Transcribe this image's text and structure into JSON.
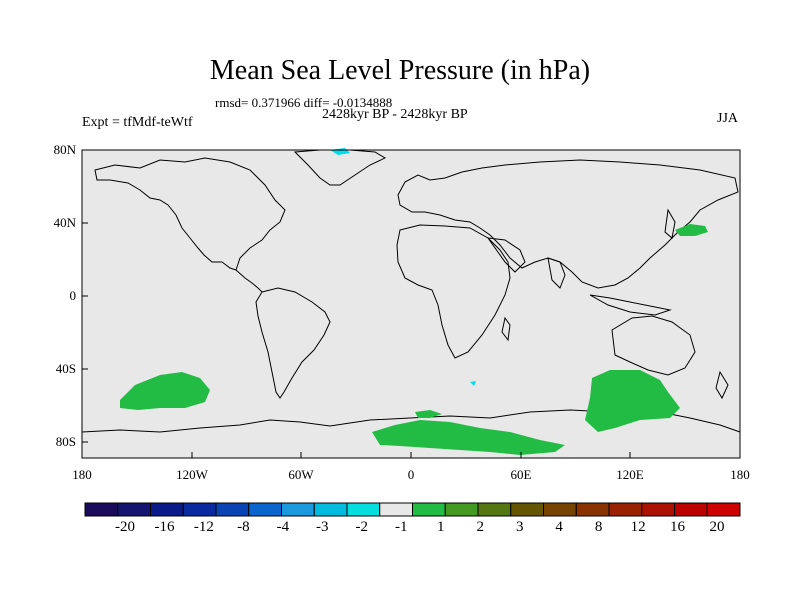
{
  "title": "Mean Sea Level Pressure (in hPa)",
  "stats": "rmsd= 0.371966 diff= -0.0134888",
  "period": "2428kyr BP - 2428kyr BP",
  "expt": "Expt = tfMdf-teWtf",
  "season": "JJA",
  "yaxis": [
    "80N",
    "40N",
    "0",
    "40S",
    "80S"
  ],
  "xaxis": [
    "180",
    "120W",
    "60W",
    "0",
    "60E",
    "120E",
    "180"
  ],
  "colors": {
    "background": "#e8e8e8",
    "positive_1_2": "#22bb44",
    "negative_2_1": "#00ddee",
    "negative_3_2": "#00bbdd"
  },
  "colorbar": {
    "colors": [
      "#1a0a5a",
      "#151570",
      "#0a1a88",
      "#0a2aa0",
      "#0a44b4",
      "#0a66cc",
      "#1a99dd",
      "#00bbdd",
      "#00dddd",
      "#e8e8e8",
      "#22bb44",
      "#449922",
      "#557711",
      "#665500",
      "#774400",
      "#883300",
      "#992200",
      "#aa1100",
      "#bb0000",
      "#cc0000"
    ],
    "labels": [
      "-20",
      "-16",
      "-12",
      "-8",
      "-4",
      "-3",
      "-2",
      "-1",
      "1",
      "2",
      "3",
      "4",
      "8",
      "12",
      "16",
      "20"
    ]
  }
}
